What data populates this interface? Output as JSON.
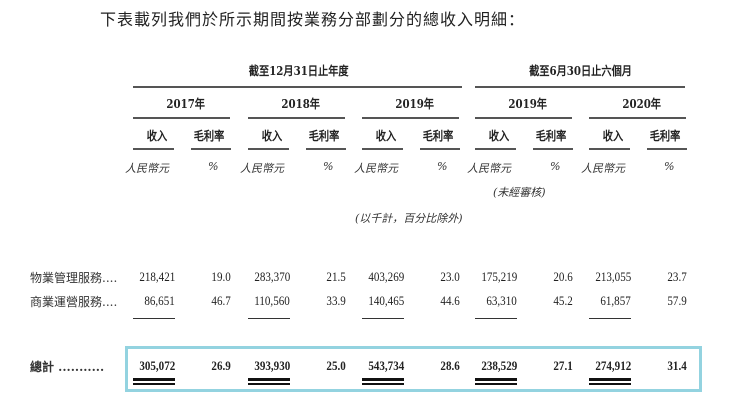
{
  "title": "下表載列我們於所示期間按業務分部劃分的總收入明細：",
  "group_headers": [
    "截至12月31日止年度",
    "截至6月30日止六個月"
  ],
  "years": [
    "2017年",
    "2018年",
    "2019年",
    "2019年",
    "2020年"
  ],
  "sub_headers": {
    "revenue": "收入",
    "margin": "毛利率"
  },
  "units": {
    "revenue": "人民幣元",
    "margin": "%"
  },
  "unaudited_note": "(未經審核)",
  "thousands_note": "(以千計，百分比除外)",
  "rows": [
    {
      "label": "物業管理服務....",
      "values": [
        "218,421",
        "19.0",
        "283,370",
        "21.5",
        "403,269",
        "23.0",
        "175,219",
        "20.6",
        "213,055",
        "23.7"
      ]
    },
    {
      "label": "商業運營服務....",
      "values": [
        "86,651",
        "46.7",
        "110,560",
        "33.9",
        "140,465",
        "44.6",
        "63,310",
        "45.2",
        "61,857",
        "57.9"
      ]
    }
  ],
  "total": {
    "label": "總計 ...........",
    "values": [
      "305,072",
      "26.9",
      "393,930",
      "25.0",
      "543,734",
      "28.6",
      "238,529",
      "27.1",
      "274,912",
      "31.4"
    ]
  },
  "highlight_color": "#93d3e0"
}
